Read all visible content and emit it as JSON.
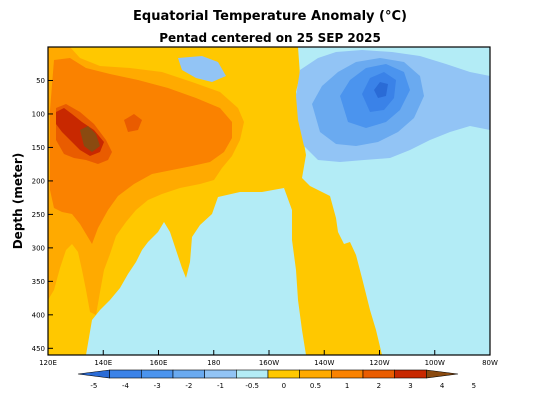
{
  "chart_data": {
    "type": "heatmap",
    "title": "Equatorial Temperature Anomaly (°C)",
    "subtitle": "Pentad centered on 25 SEP 2025",
    "ylabel": "Depth (meter)",
    "xlabel": "",
    "x_range_degE": [
      120,
      280
    ],
    "y_range_m": [
      0,
      460
    ],
    "x_ticks": [
      {
        "lon": 120,
        "label": "120E"
      },
      {
        "lon": 140,
        "label": "140E"
      },
      {
        "lon": 160,
        "label": "160E"
      },
      {
        "lon": 180,
        "label": "180"
      },
      {
        "lon": 200,
        "label": "160W"
      },
      {
        "lon": 220,
        "label": "140W"
      },
      {
        "lon": 240,
        "label": "120W"
      },
      {
        "lon": 260,
        "label": "100W"
      },
      {
        "lon": 280,
        "label": "80W"
      }
    ],
    "y_ticks": [
      50,
      100,
      150,
      200,
      250,
      300,
      350,
      400,
      450
    ],
    "levels": [
      -5,
      -4,
      -3,
      -2,
      -1,
      -0.5,
      0,
      0.5,
      1,
      2,
      3,
      4,
      5
    ],
    "level_labels": [
      "-5",
      "-4",
      "-3",
      "-2",
      "-1",
      "-0.5",
      "0",
      "0.5",
      "1",
      "2",
      "3",
      "4",
      "5"
    ],
    "colors": [
      "#2a6bd6",
      "#3a82e8",
      "#4b94ee",
      "#6aaaf0",
      "#92c4f5",
      "#b3ecf6",
      "#ffc800",
      "#ffaa00",
      "#fa8200",
      "#e95c00",
      "#c82800",
      "#8a4a10"
    ],
    "colors_note_skip": true,
    "regions": [
      {
        "name": "west-warm-anomaly",
        "level": 0.5,
        "lon": [
          120,
          166
        ],
        "depth": [
          0,
          460
        ]
      },
      {
        "name": "west-warm-core",
        "level": 1,
        "lon": [
          120,
          200
        ],
        "depth": [
          40,
          250
        ]
      },
      {
        "name": "west-warm-max",
        "level": 3,
        "lon": [
          121,
          136
        ],
        "depth": [
          90,
          170
        ]
      },
      {
        "name": "central-warm-tongue",
        "level": 0.5,
        "lon": [
          176,
          236
        ],
        "depth": [
          90,
          460
        ]
      },
      {
        "name": "east-cold-anomaly",
        "level": -1,
        "lon": [
          222,
          278
        ],
        "depth": [
          20,
          170
        ]
      },
      {
        "name": "east-cold-core",
        "level": -2,
        "lon": [
          233,
          256
        ],
        "depth": [
          40,
          130
        ]
      }
    ]
  }
}
